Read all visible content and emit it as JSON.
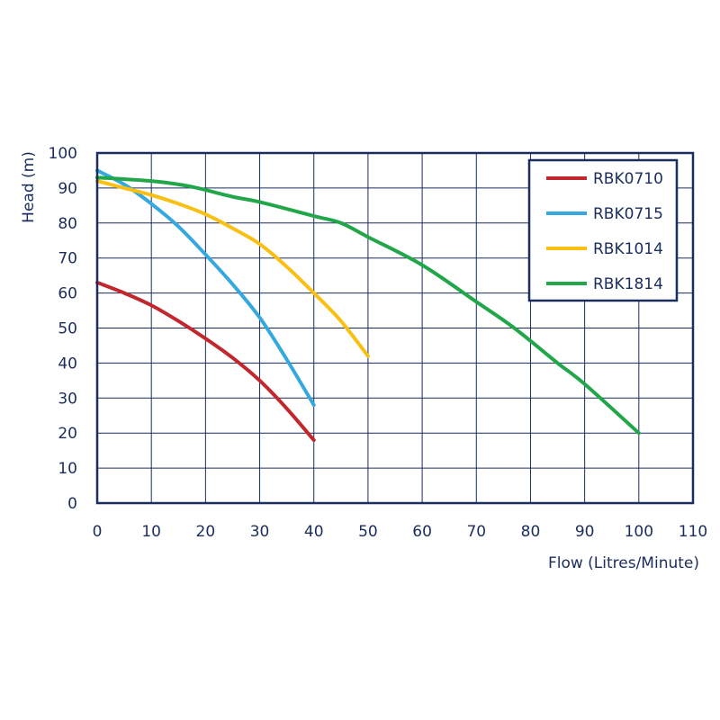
{
  "chart_data": {
    "type": "line",
    "title": "",
    "xlabel": "Flow (Litres/Minute)",
    "ylabel": "Head (m)",
    "xlim": [
      0,
      110
    ],
    "ylim": [
      0,
      100
    ],
    "xticks": [
      0,
      10,
      20,
      30,
      40,
      50,
      60,
      70,
      80,
      90,
      100,
      110
    ],
    "yticks": [
      0,
      10,
      20,
      30,
      40,
      50,
      60,
      70,
      80,
      90,
      100
    ],
    "grid": true,
    "legend_position": "top-right",
    "series": [
      {
        "name": "RBK0710",
        "color": "#c1272d",
        "x": [
          0,
          5,
          10,
          15,
          20,
          25,
          30,
          35,
          40
        ],
        "y": [
          63,
          60,
          56.5,
          52,
          47,
          41.5,
          35,
          27,
          18
        ]
      },
      {
        "name": "RBK0715",
        "color": "#35a8df",
        "x": [
          0,
          5,
          10,
          15,
          20,
          25,
          30,
          35,
          40
        ],
        "y": [
          95,
          91,
          85.5,
          79,
          71,
          62.5,
          53,
          41,
          28
        ]
      },
      {
        "name": "RBK1014",
        "color": "#f9c013",
        "x": [
          0,
          5,
          10,
          15,
          20,
          25,
          30,
          35,
          40,
          45,
          50
        ],
        "y": [
          92,
          90,
          88,
          85.5,
          82.5,
          78.5,
          74,
          67.5,
          60,
          52,
          42
        ]
      },
      {
        "name": "RBK1814",
        "color": "#22a64a",
        "x": [
          0,
          10,
          17,
          25,
          30,
          40,
          45,
          50,
          60,
          70,
          77,
          85,
          90,
          100
        ],
        "y": [
          93,
          92,
          90.5,
          87.5,
          86,
          82,
          80,
          76,
          68,
          57.5,
          50,
          40,
          34,
          20
        ]
      }
    ]
  }
}
